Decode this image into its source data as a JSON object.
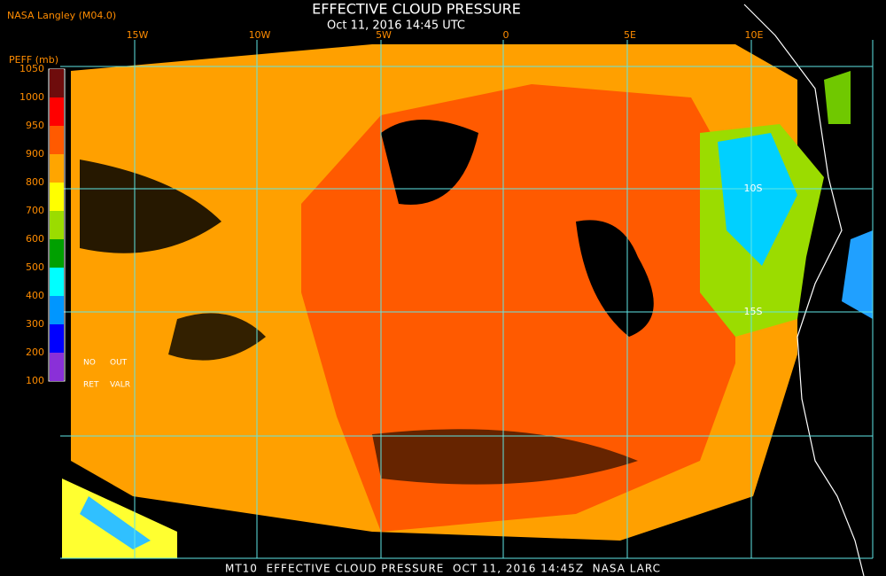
{
  "header": {
    "source": "NASA Langley (M04.0)",
    "title": "EFFECTIVE CLOUD PRESSURE",
    "time": "Oct 11, 2016 14:45 UTC"
  },
  "colorbar": {
    "label": "PEFF (mb)",
    "ticks": [
      1050,
      1000,
      950,
      900,
      800,
      700,
      600,
      500,
      400,
      300,
      200,
      100
    ],
    "colors": [
      "#6e0c0c",
      "#ff0000",
      "#ff5a00",
      "#ffa500",
      "#ffff00",
      "#9bdc00",
      "#00a000",
      "#00ffff",
      "#0096ff",
      "#0000ff",
      "#8a30d8"
    ],
    "notes": [
      "NO",
      "OUT",
      "RET",
      "VALR"
    ]
  },
  "grid": {
    "lon_labels": [
      "15W",
      "10W",
      "5W",
      "0",
      "5E",
      "10E"
    ],
    "lat_labels": [
      "10S",
      "15S"
    ]
  },
  "footer": "MT10  EFFECTIVE CLOUD PRESSURE  OCT 11, 2016 14:45Z  NASA LARC"
}
